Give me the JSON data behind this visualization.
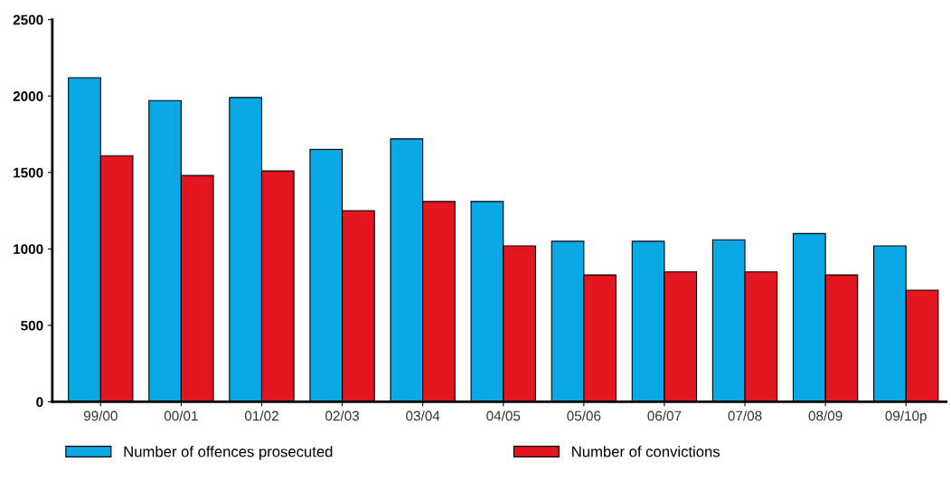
{
  "chart_data": {
    "type": "bar",
    "categories": [
      "99/00",
      "00/01",
      "01/02",
      "02/03",
      "03/04",
      "04/05",
      "05/06",
      "06/07",
      "07/08",
      "08/09",
      "09/10p"
    ],
    "series": [
      {
        "name": "Number of offences prosecuted",
        "color": "#0aa9e6",
        "values": [
          2120,
          1970,
          1990,
          1650,
          1720,
          1310,
          1050,
          1050,
          1060,
          1100,
          1020
        ]
      },
      {
        "name": "Number of convictions",
        "color": "#e3161f",
        "values": [
          1610,
          1480,
          1510,
          1250,
          1310,
          1020,
          830,
          850,
          850,
          830,
          730
        ]
      }
    ],
    "ylim": [
      0,
      2500
    ],
    "yticks": [
      0,
      500,
      1000,
      1500,
      2000,
      2500
    ],
    "grid": false,
    "legend": "bottom"
  }
}
